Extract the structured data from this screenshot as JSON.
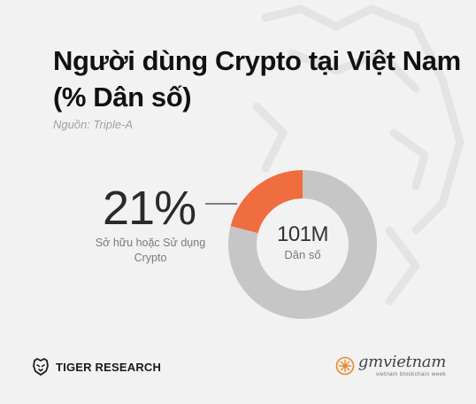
{
  "header": {
    "title": "Người dùng Crypto tại Việt Nam (% Dân số)",
    "source": "Nguồn: Triple-A"
  },
  "colors": {
    "accent": "#ef6d3e",
    "remainder": "#c6c6c6",
    "background": "#f2f2f2"
  },
  "chart_data": {
    "type": "pie",
    "variant": "donut",
    "slices": [
      {
        "label": "Sở hữu hoặc Sử dụng Crypto",
        "value": 21,
        "display": "21%",
        "color": "#ef6d3e"
      },
      {
        "label": "",
        "value": 79,
        "color": "#c6c6c6"
      }
    ],
    "center": {
      "value": "101M",
      "label": "Dân số"
    },
    "callout": {
      "value": "21%",
      "label": "Sở hữu hoặc Sử dụng Crypto"
    }
  },
  "footer": {
    "left_brand": {
      "name": "TIGER RESEARCH",
      "icon": "tiger-icon"
    },
    "right_brand": {
      "wordmark": "gmvietnam",
      "tagline": "vietnam blockchain week",
      "icon": "gm-sunburst-icon"
    }
  }
}
